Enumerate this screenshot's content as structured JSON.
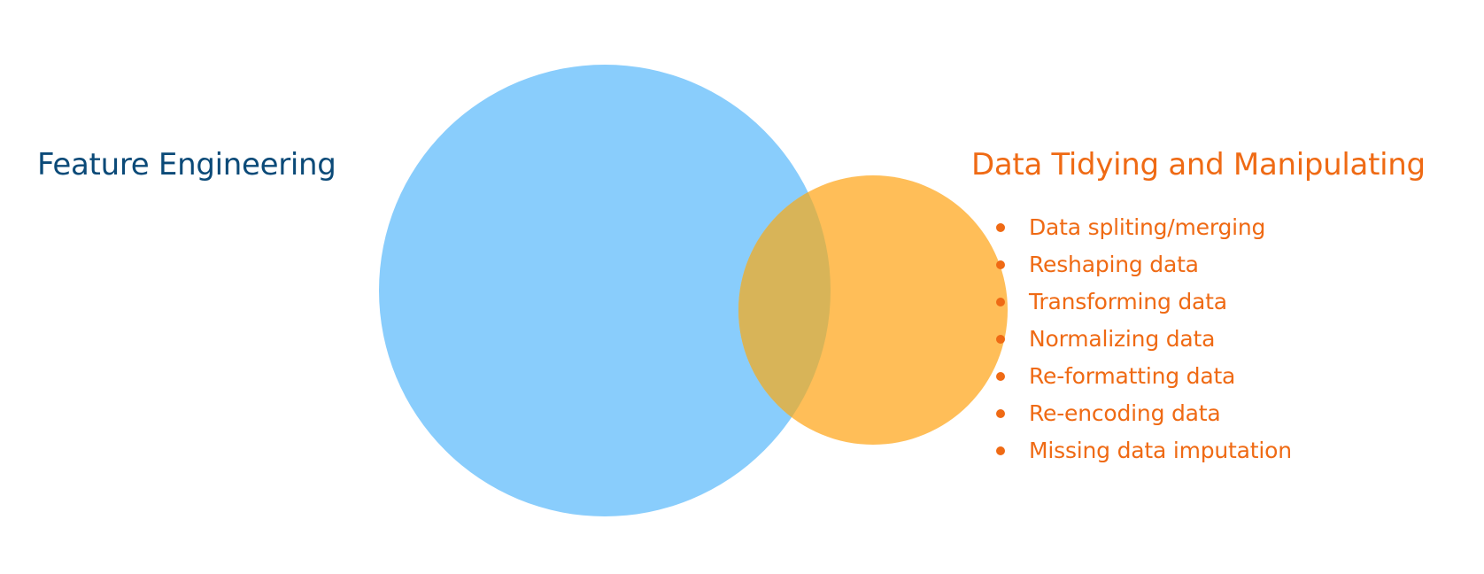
{
  "colors": {
    "feature_circle": "#89CDFC",
    "data_circle": "#FFBE58",
    "overlap": "#D8B458",
    "left_text": "#0B4A78",
    "right_text": "#EF6A14"
  },
  "left_set": {
    "title": "Feature Engineering"
  },
  "right_set": {
    "title": "Data Tidying and Manipulating",
    "items": [
      "Data spliting/merging",
      "Reshaping data",
      "Transforming data",
      "Normalizing data",
      "Re-formatting data",
      "Re-encoding data",
      "Missing data imputation"
    ]
  }
}
